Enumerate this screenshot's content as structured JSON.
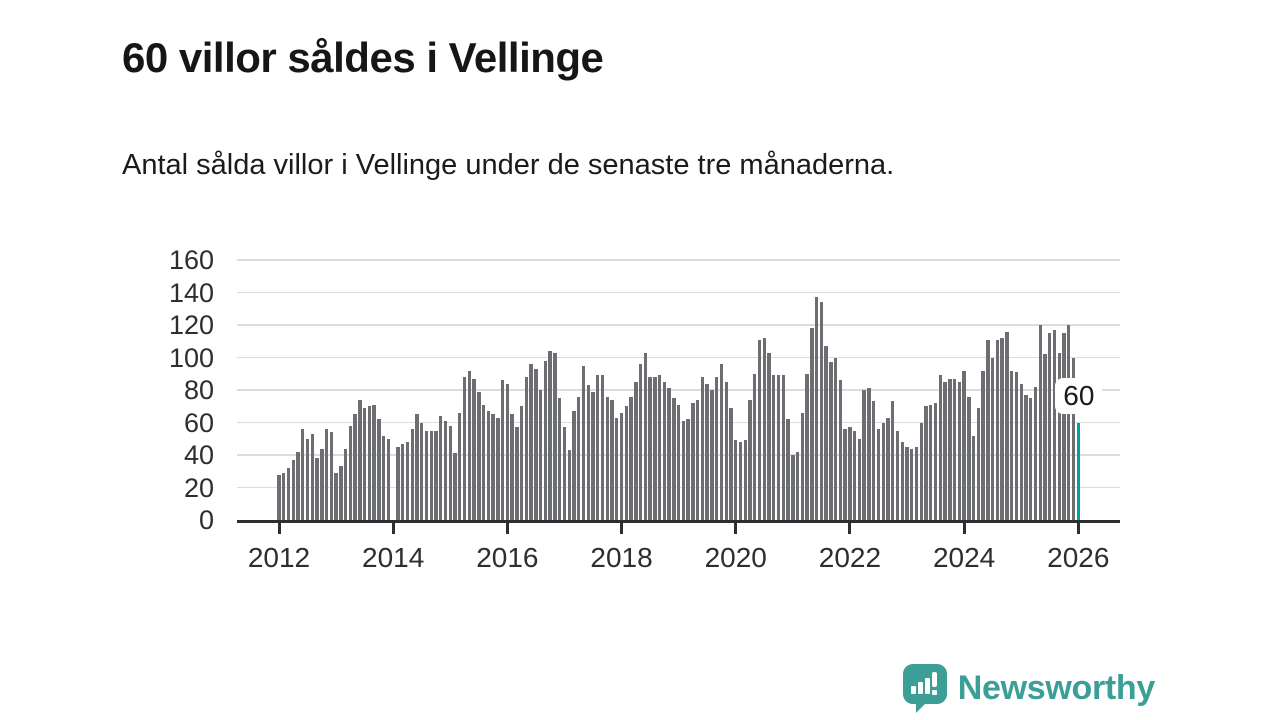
{
  "title": "60 villor såldes i Vellinge",
  "subtitle": "Antal sålda villor i Vellinge under de senaste tre månaderna.",
  "annotation": {
    "label": "60"
  },
  "logo": {
    "text": "Newsworthy",
    "icon": "newsworthy-speech-bubble-chart-icon"
  },
  "colors": {
    "bar": "#6d6e71",
    "highlight": "#00a0a2",
    "grid": "#dcdcdc",
    "axis": "#2e2e2e",
    "title_text": "#161616",
    "axis_text": "#2e2e2e",
    "logo_teal": "#3b9e97"
  },
  "chart_data": {
    "type": "bar",
    "title": "60 villor såldes i Vellinge",
    "subtitle": "Antal sålda villor i Vellinge under de senaste tre månaderna.",
    "xlabel": "",
    "ylabel": "",
    "frequency": "monthly",
    "x_start": "2012-01",
    "x_end": "2026-01",
    "ylim": [
      0,
      160
    ],
    "yticks": [
      0,
      20,
      40,
      60,
      80,
      100,
      120,
      140,
      160
    ],
    "xticks": [
      2012,
      2014,
      2016,
      2018,
      2020,
      2022,
      2024,
      2026
    ],
    "grid": "horizontal",
    "legend": "none",
    "highlight_index": 168,
    "highlight_value": 60,
    "values": [
      28,
      29,
      32,
      37,
      42,
      56,
      50,
      53,
      38,
      44,
      56,
      54,
      29,
      33,
      44,
      58,
      65,
      74,
      69,
      70,
      71,
      62,
      52,
      50,
      0,
      45,
      47,
      48,
      56,
      65,
      60,
      55,
      55,
      55,
      64,
      61,
      58,
      41,
      66,
      88,
      92,
      87,
      79,
      71,
      67,
      65,
      63,
      86,
      84,
      65,
      57,
      70,
      88,
      96,
      93,
      80,
      98,
      104,
      103,
      75,
      57,
      43,
      67,
      76,
      95,
      83,
      79,
      89,
      89,
      76,
      74,
      63,
      66,
      70,
      76,
      85,
      96,
      103,
      88,
      88,
      89,
      85,
      81,
      75,
      71,
      61,
      62,
      72,
      74,
      88,
      84,
      80,
      88,
      96,
      85,
      69,
      49,
      48,
      49,
      74,
      90,
      111,
      112,
      103,
      89,
      89,
      89,
      62,
      40,
      42,
      66,
      90,
      118,
      137,
      134,
      107,
      97,
      100,
      86,
      56,
      57,
      55,
      50,
      80,
      81,
      73,
      56,
      60,
      63,
      73,
      55,
      48,
      45,
      44,
      45,
      60,
      70,
      71,
      72,
      89,
      85,
      87,
      87,
      85,
      92,
      76,
      52,
      69,
      92,
      111,
      100,
      111,
      112,
      116,
      92,
      91,
      84,
      77,
      75,
      82,
      120,
      102,
      115,
      117,
      103,
      115,
      120,
      100,
      60
    ]
  }
}
